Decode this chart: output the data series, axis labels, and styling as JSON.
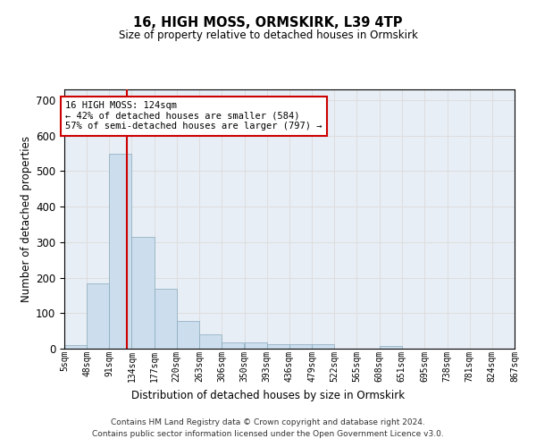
{
  "title": "16, HIGH MOSS, ORMSKIRK, L39 4TP",
  "subtitle": "Size of property relative to detached houses in Ormskirk",
  "xlabel": "Distribution of detached houses by size in Ormskirk",
  "ylabel": "Number of detached properties",
  "bar_color": "#ccdded",
  "bar_edge_color": "#88aabb",
  "grid_color": "#dddddd",
  "background_color": "#e8eef6",
  "vline_x": 124,
  "vline_color": "#cc0000",
  "annotation_text": "16 HIGH MOSS: 124sqm\n← 42% of detached houses are smaller (584)\n57% of semi-detached houses are larger (797) →",
  "annotation_box_facecolor": "#ffffff",
  "annotation_box_edge": "#cc0000",
  "footer_line1": "Contains HM Land Registry data © Crown copyright and database right 2024.",
  "footer_line2": "Contains public sector information licensed under the Open Government Licence v3.0.",
  "bins": [
    5,
    48,
    91,
    134,
    177,
    220,
    263,
    306,
    350,
    393,
    436,
    479,
    522,
    565,
    608,
    651,
    695,
    738,
    781,
    824,
    867
  ],
  "bin_labels": [
    "5sqm",
    "48sqm",
    "91sqm",
    "134sqm",
    "177sqm",
    "220sqm",
    "263sqm",
    "306sqm",
    "350sqm",
    "393sqm",
    "436sqm",
    "479sqm",
    "522sqm",
    "565sqm",
    "608sqm",
    "651sqm",
    "695sqm",
    "738sqm",
    "781sqm",
    "824sqm",
    "867sqm"
  ],
  "counts": [
    10,
    185,
    548,
    315,
    168,
    77,
    40,
    17,
    17,
    12,
    12,
    12,
    0,
    0,
    8,
    0,
    0,
    0,
    0,
    0
  ],
  "ylim": [
    0,
    730
  ],
  "yticks": [
    0,
    100,
    200,
    300,
    400,
    500,
    600,
    700
  ]
}
